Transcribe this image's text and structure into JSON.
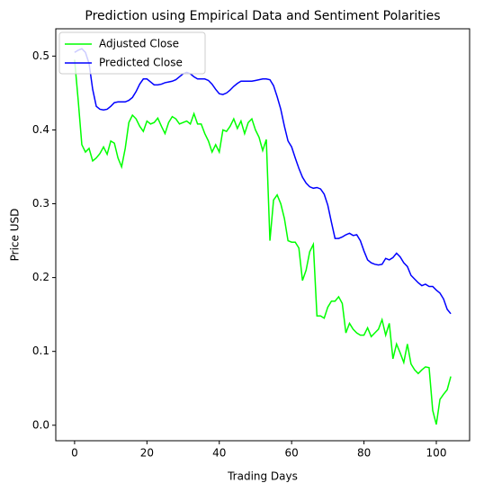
{
  "chart_data": {
    "type": "line",
    "title": "Prediction using Empirical Data and Sentiment Polarities",
    "xlabel": "Trading Days",
    "ylabel": "Price USD",
    "x": [
      0,
      1,
      2,
      3,
      4,
      5,
      6,
      7,
      8,
      9,
      10,
      11,
      12,
      13,
      14,
      15,
      16,
      17,
      18,
      19,
      20,
      21,
      22,
      23,
      24,
      25,
      26,
      27,
      28,
      29,
      30,
      31,
      32,
      33,
      34,
      35,
      36,
      37,
      38,
      39,
      40,
      41,
      42,
      43,
      44,
      45,
      46,
      47,
      48,
      49,
      50,
      51,
      52,
      53,
      54,
      55,
      56,
      57,
      58,
      59,
      60,
      61,
      62,
      63,
      64,
      65,
      66,
      67,
      68,
      69,
      70,
      71,
      72,
      73,
      74,
      75,
      76,
      77,
      78,
      79,
      80,
      81,
      82,
      83,
      84,
      85,
      86,
      87,
      88,
      89,
      90,
      91,
      92,
      93,
      94,
      95,
      96,
      97,
      98,
      99,
      100,
      101,
      102,
      103,
      104
    ],
    "series": [
      {
        "name": "Adjusted Close",
        "color": "#00ff00",
        "values": [
          0.495,
          0.44,
          0.38,
          0.37,
          0.375,
          0.358,
          0.362,
          0.368,
          0.377,
          0.367,
          0.385,
          0.382,
          0.362,
          0.35,
          0.375,
          0.41,
          0.42,
          0.415,
          0.405,
          0.398,
          0.412,
          0.408,
          0.41,
          0.416,
          0.405,
          0.395,
          0.41,
          0.418,
          0.415,
          0.408,
          0.41,
          0.412,
          0.408,
          0.422,
          0.408,
          0.408,
          0.395,
          0.385,
          0.37,
          0.38,
          0.37,
          0.4,
          0.398,
          0.405,
          0.415,
          0.402,
          0.412,
          0.395,
          0.41,
          0.415,
          0.4,
          0.39,
          0.372,
          0.387,
          0.25,
          0.305,
          0.312,
          0.3,
          0.28,
          0.25,
          0.248,
          0.248,
          0.24,
          0.196,
          0.21,
          0.235,
          0.245,
          0.148,
          0.148,
          0.145,
          0.16,
          0.168,
          0.168,
          0.174,
          0.165,
          0.125,
          0.138,
          0.13,
          0.125,
          0.122,
          0.122,
          0.132,
          0.12,
          0.125,
          0.13,
          0.143,
          0.122,
          0.138,
          0.09,
          0.11,
          0.098,
          0.085,
          0.11,
          0.083,
          0.075,
          0.07,
          0.075,
          0.079,
          0.078,
          0.02,
          0.001,
          0.035,
          0.042,
          0.048,
          0.066
        ]
      },
      {
        "name": "Predicted Close",
        "color": "#0000ff",
        "values": [
          0.505,
          0.508,
          0.51,
          0.505,
          0.49,
          0.455,
          0.432,
          0.428,
          0.427,
          0.428,
          0.432,
          0.437,
          0.438,
          0.438,
          0.438,
          0.44,
          0.444,
          0.452,
          0.462,
          0.469,
          0.469,
          0.465,
          0.461,
          0.461,
          0.462,
          0.464,
          0.465,
          0.466,
          0.468,
          0.472,
          0.476,
          0.478,
          0.476,
          0.472,
          0.469,
          0.469,
          0.469,
          0.467,
          0.462,
          0.455,
          0.449,
          0.448,
          0.45,
          0.454,
          0.459,
          0.463,
          0.466,
          0.466,
          0.466,
          0.466,
          0.467,
          0.468,
          0.469,
          0.469,
          0.468,
          0.46,
          0.445,
          0.428,
          0.405,
          0.385,
          0.377,
          0.362,
          0.348,
          0.336,
          0.328,
          0.323,
          0.321,
          0.322,
          0.32,
          0.313,
          0.298,
          0.275,
          0.253,
          0.253,
          0.255,
          0.258,
          0.26,
          0.257,
          0.258,
          0.25,
          0.236,
          0.224,
          0.22,
          0.218,
          0.217,
          0.218,
          0.226,
          0.224,
          0.227,
          0.233,
          0.228,
          0.22,
          0.215,
          0.203,
          0.198,
          0.193,
          0.189,
          0.191,
          0.188,
          0.188,
          0.183,
          0.179,
          0.171,
          0.157,
          0.151
        ]
      }
    ],
    "xlim": [
      -5.2,
      109.2
    ],
    "ylim": [
      -0.021,
      0.537
    ],
    "xticks": [
      0,
      20,
      40,
      60,
      80,
      100
    ],
    "yticks": [
      {
        "value": 0,
        "label": "0.0"
      },
      0.1,
      0.2,
      0.3,
      0.4,
      0.5
    ],
    "legend": "upper left",
    "grid": false
  }
}
